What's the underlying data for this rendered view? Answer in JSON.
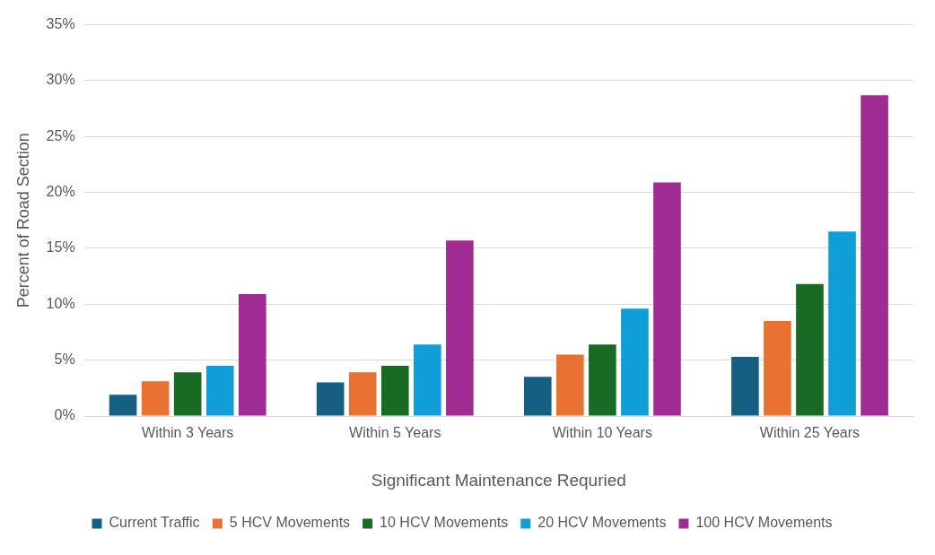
{
  "chart_data": {
    "type": "bar",
    "xlabel": "Significant Maintenance Requried",
    "ylabel": "Percent of Road Section",
    "categories": [
      "Within 3 Years",
      "Within 5 Years",
      "Within 10 Years",
      "Within 25 Years"
    ],
    "series": [
      {
        "name": "Current Traffic",
        "color": "#156082",
        "values": [
          1.9,
          3.0,
          3.5,
          5.3
        ]
      },
      {
        "name": "5 HCV Movements",
        "color": "#e97132",
        "values": [
          3.1,
          3.9,
          5.5,
          8.5
        ]
      },
      {
        "name": "10 HCV Movements",
        "color": "#196b24",
        "values": [
          3.9,
          4.5,
          6.4,
          11.8
        ]
      },
      {
        "name": "20 HCV Movements",
        "color": "#0f9ed5",
        "values": [
          4.5,
          6.4,
          9.6,
          16.5
        ]
      },
      {
        "name": "100 HCV Movements",
        "color": "#a02b93",
        "values": [
          10.9,
          15.7,
          20.9,
          28.7
        ]
      }
    ],
    "ylim": [
      0,
      35
    ],
    "yticks": [
      {
        "value": 0,
        "label": "0%"
      },
      {
        "value": 5,
        "label": "5%"
      },
      {
        "value": 10,
        "label": "10%"
      },
      {
        "value": 15,
        "label": "15%"
      },
      {
        "value": 20,
        "label": "20%"
      },
      {
        "value": 25,
        "label": "25%"
      },
      {
        "value": 30,
        "label": "30%"
      },
      {
        "value": 35,
        "label": "35%"
      }
    ],
    "grid": "y",
    "legend": "bottom"
  }
}
